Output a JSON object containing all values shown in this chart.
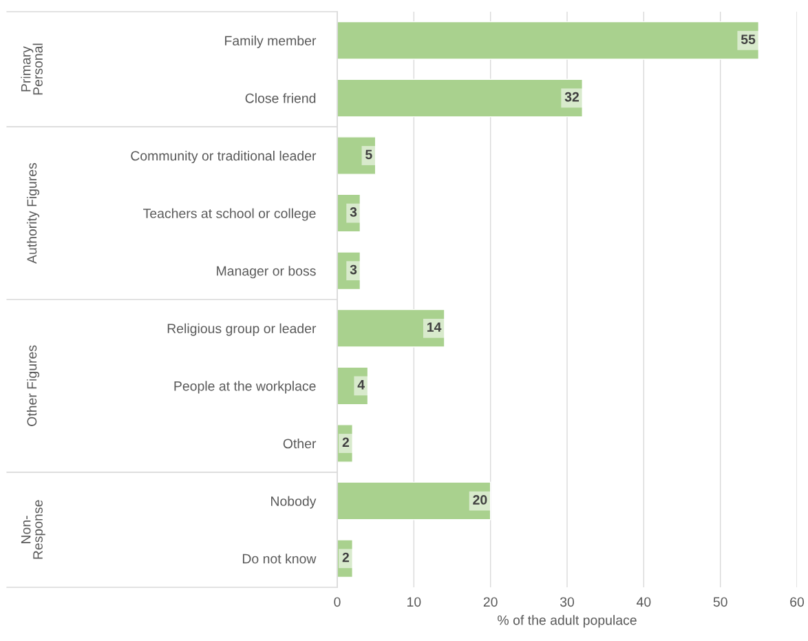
{
  "chart_data": {
    "type": "bar",
    "orientation": "horizontal",
    "categories": [
      "Family member",
      "Close friend",
      "Community or traditional leader",
      "Teachers at school or college",
      "Manager or boss",
      "Religious group or leader",
      "People at the workplace",
      "Other",
      "Nobody",
      "Do not know"
    ],
    "values": [
      55,
      32,
      5,
      3,
      3,
      14,
      4,
      2,
      20,
      2
    ],
    "color": "#a9d18e",
    "xlabel": "% of the adult populace",
    "xlim": [
      0,
      60
    ],
    "xticks": [
      0,
      10,
      20,
      30,
      40,
      50,
      60
    ],
    "grid": "x",
    "data_labels": true,
    "legend": false,
    "annotations": [
      "Primary\nPersonal",
      "Authority Figures",
      "Other Figures",
      "Non-\nResponse"
    ]
  }
}
